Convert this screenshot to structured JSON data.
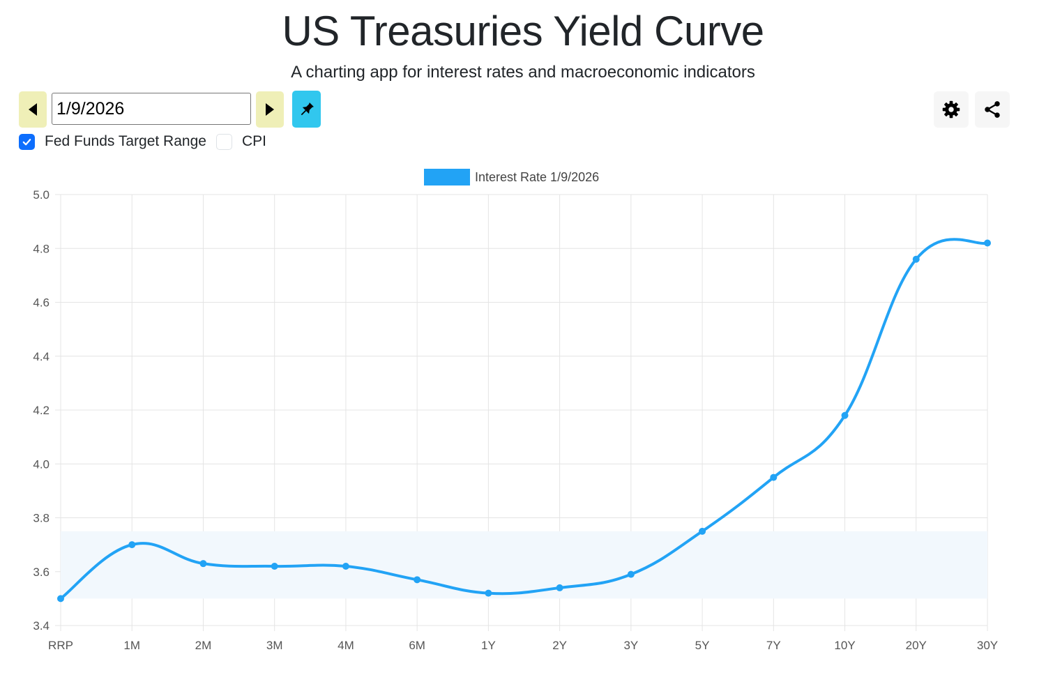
{
  "header": {
    "title": "US Treasuries Yield Curve",
    "subtitle": "A charting app for interest rates and macroeconomic indicators"
  },
  "controls": {
    "date_value": "1/9/2026",
    "prev_icon": "caret-left-icon",
    "next_icon": "caret-right-icon",
    "pin_icon": "pin-icon",
    "settings_icon": "gear-icon",
    "share_icon": "share-icon",
    "fed_funds_label": "Fed Funds Target Range",
    "fed_funds_checked": true,
    "cpi_label": "CPI",
    "cpi_checked": false
  },
  "colors": {
    "line": "#22a3f5",
    "band": "#f2f8fd",
    "nav_button": "#efefb7",
    "pin_button": "#31c7ee",
    "checkbox": "#0d6efd"
  },
  "chart_data": {
    "type": "line",
    "legend": {
      "label": "Interest Rate 1/9/2026",
      "position": "top"
    },
    "categories": [
      "RRP",
      "1M",
      "2M",
      "3M",
      "4M",
      "6M",
      "1Y",
      "2Y",
      "3Y",
      "5Y",
      "7Y",
      "10Y",
      "20Y",
      "30Y"
    ],
    "series": [
      {
        "name": "Interest Rate 1/9/2026",
        "values": [
          3.5,
          3.7,
          3.63,
          3.62,
          3.62,
          3.57,
          3.52,
          3.54,
          3.59,
          3.75,
          3.95,
          4.18,
          4.76,
          4.82
        ]
      }
    ],
    "fed_funds_band": [
      3.5,
      3.75
    ],
    "ylim": [
      3.4,
      5.0
    ],
    "yticks": [
      "3.4",
      "3.6",
      "3.8",
      "4.0",
      "4.2",
      "4.4",
      "4.6",
      "4.8",
      "5.0"
    ],
    "grid": true
  }
}
